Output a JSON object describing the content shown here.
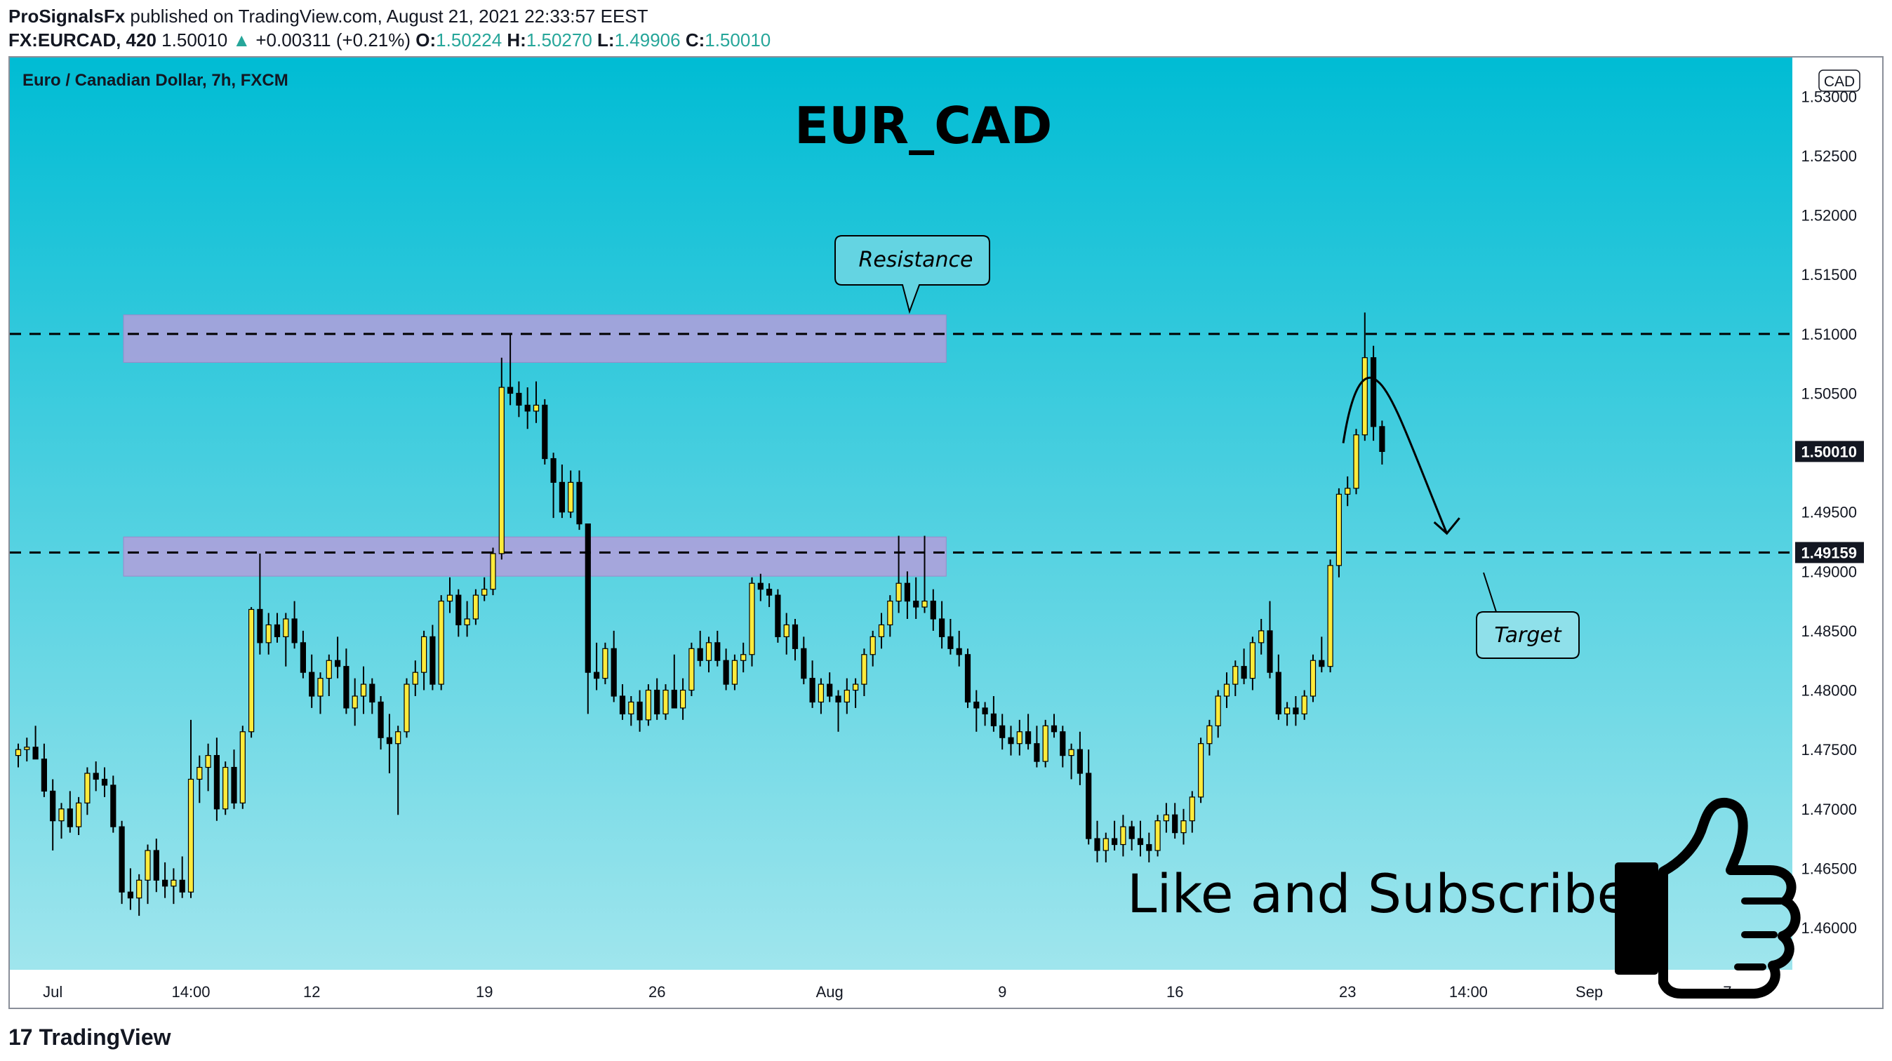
{
  "header": {
    "publisher": "ProSignalsFx",
    "published_text": "published on TradingView.com, August 21, 2021 22:33:57 EEST",
    "symbol": "FX:EURCAD, 420",
    "last": "1.50010",
    "change": "+0.00311 (+0.21%)",
    "o_label": "O:",
    "o": "1.50224",
    "h_label": "H:",
    "h": "1.50270",
    "l_label": "L:",
    "l": "1.49906",
    "c_label": "C:",
    "c": "1.50010"
  },
  "chart": {
    "instrument_label": "Euro / Canadian Dollar, 7h, FXCM",
    "currency_badge": "CAD",
    "main_title": "EUR_CAD",
    "resistance_label": "Resistance",
    "target_label": "Target",
    "cta_text": "Like and Subscribe",
    "current_price_tag": "1.50010",
    "level_price_tag": "1.49159"
  },
  "footer": {
    "brand": "TradingView",
    "logo_glyph": "17"
  },
  "colors": {
    "bg_top": "#00bcd4",
    "bg_bottom": "#a6e7ee",
    "bull": "#ffeb3b",
    "bear": "#000000",
    "zone": "#b39ddb"
  },
  "chart_data": {
    "type": "candlestick",
    "y_ticks": [
      "1.53000",
      "1.52500",
      "1.52000",
      "1.51500",
      "1.51000",
      "1.50500",
      "1.50000",
      "1.49500",
      "1.49000",
      "1.48500",
      "1.48000",
      "1.47500",
      "1.47000",
      "1.46500",
      "1.46000"
    ],
    "y_tick_values": [
      1.53,
      1.525,
      1.52,
      1.515,
      1.51,
      1.505,
      1.5,
      1.495,
      1.49,
      1.485,
      1.48,
      1.475,
      1.47,
      1.465,
      1.46
    ],
    "ylim": [
      1.4575,
      1.5325
    ],
    "x_ticks": [
      {
        "label": "Jul",
        "i": 4
      },
      {
        "label": "14:00",
        "i": 20
      },
      {
        "label": "12",
        "i": 34
      },
      {
        "label": "19",
        "i": 54
      },
      {
        "label": "26",
        "i": 74
      },
      {
        "label": "Aug",
        "i": 94
      },
      {
        "label": "9",
        "i": 114
      },
      {
        "label": "16",
        "i": 134
      },
      {
        "label": "23",
        "i": 154
      },
      {
        "label": "14:00",
        "i": 168
      },
      {
        "label": "Sep",
        "i": 182
      },
      {
        "label": "7",
        "i": 198
      }
    ],
    "resistance_zone": [
      1.5076,
      1.5116
    ],
    "support_zone": [
      1.4896,
      1.4929
    ],
    "resistance_level": 1.51,
    "support_level": 1.49159,
    "current_price": 1.5001,
    "projection": [
      {
        "i": 153.5,
        "y": 1.5008
      },
      {
        "i": 157.5,
        "y": 1.506
      },
      {
        "i": 161.5,
        "y": 1.5003
      },
      {
        "i": 165.5,
        "y": 1.4932
      }
    ],
    "ohlc": [
      [
        1.4745,
        1.4755,
        1.4735,
        1.475
      ],
      [
        1.475,
        1.476,
        1.474,
        1.4752
      ],
      [
        1.4752,
        1.477,
        1.4745,
        1.4742
      ],
      [
        1.4742,
        1.4755,
        1.471,
        1.4715
      ],
      [
        1.4715,
        1.4725,
        1.4665,
        1.469
      ],
      [
        1.469,
        1.4705,
        1.4675,
        1.47
      ],
      [
        1.47,
        1.4715,
        1.468,
        1.4685
      ],
      [
        1.4685,
        1.471,
        1.4678,
        1.4705
      ],
      [
        1.4705,
        1.4735,
        1.4695,
        1.473
      ],
      [
        1.473,
        1.474,
        1.4715,
        1.4725
      ],
      [
        1.4725,
        1.4735,
        1.471,
        1.472
      ],
      [
        1.472,
        1.4728,
        1.468,
        1.4685
      ],
      [
        1.4685,
        1.469,
        1.462,
        1.463
      ],
      [
        1.463,
        1.465,
        1.4615,
        1.4625
      ],
      [
        1.4625,
        1.4645,
        1.461,
        1.464
      ],
      [
        1.464,
        1.467,
        1.462,
        1.4665
      ],
      [
        1.4665,
        1.4675,
        1.463,
        1.464
      ],
      [
        1.464,
        1.4655,
        1.4625,
        1.4635
      ],
      [
        1.4635,
        1.465,
        1.462,
        1.464
      ],
      [
        1.464,
        1.466,
        1.4625,
        1.463
      ],
      [
        1.463,
        1.4775,
        1.4625,
        1.4725
      ],
      [
        1.4725,
        1.4745,
        1.4705,
        1.4735
      ],
      [
        1.4735,
        1.4755,
        1.4715,
        1.4745
      ],
      [
        1.4745,
        1.476,
        1.469,
        1.47
      ],
      [
        1.47,
        1.474,
        1.4695,
        1.4735
      ],
      [
        1.4735,
        1.475,
        1.47,
        1.4705
      ],
      [
        1.4705,
        1.477,
        1.47,
        1.4765
      ],
      [
        1.4765,
        1.487,
        1.476,
        1.4868
      ],
      [
        1.4868,
        1.4915,
        1.483,
        1.484
      ],
      [
        1.484,
        1.4865,
        1.483,
        1.4855
      ],
      [
        1.4855,
        1.4865,
        1.484,
        1.4845
      ],
      [
        1.4845,
        1.4865,
        1.482,
        1.486
      ],
      [
        1.486,
        1.4875,
        1.4835,
        1.484
      ],
      [
        1.484,
        1.485,
        1.481,
        1.4815
      ],
      [
        1.4815,
        1.483,
        1.4785,
        1.4795
      ],
      [
        1.4795,
        1.4815,
        1.478,
        1.481
      ],
      [
        1.481,
        1.483,
        1.4795,
        1.4825
      ],
      [
        1.4825,
        1.4845,
        1.481,
        1.482
      ],
      [
        1.482,
        1.4835,
        1.478,
        1.4785
      ],
      [
        1.4785,
        1.481,
        1.477,
        1.4795
      ],
      [
        1.4795,
        1.482,
        1.478,
        1.4805
      ],
      [
        1.4805,
        1.481,
        1.478,
        1.479
      ],
      [
        1.479,
        1.4795,
        1.475,
        1.476
      ],
      [
        1.476,
        1.478,
        1.473,
        1.4755
      ],
      [
        1.4755,
        1.477,
        1.4695,
        1.4765
      ],
      [
        1.4765,
        1.481,
        1.476,
        1.4805
      ],
      [
        1.4805,
        1.4825,
        1.4795,
        1.4815
      ],
      [
        1.4815,
        1.485,
        1.48,
        1.4845
      ],
      [
        1.4845,
        1.4855,
        1.48,
        1.4805
      ],
      [
        1.4805,
        1.488,
        1.48,
        1.4875
      ],
      [
        1.4875,
        1.4895,
        1.4865,
        1.488
      ],
      [
        1.488,
        1.4885,
        1.4845,
        1.4855
      ],
      [
        1.4855,
        1.4875,
        1.4845,
        1.486
      ],
      [
        1.486,
        1.4885,
        1.4855,
        1.488
      ],
      [
        1.488,
        1.4895,
        1.4875,
        1.4885
      ],
      [
        1.4885,
        1.492,
        1.488,
        1.4915
      ],
      [
        1.4915,
        1.508,
        1.491,
        1.5055
      ],
      [
        1.5055,
        1.51,
        1.504,
        1.505
      ],
      [
        1.505,
        1.506,
        1.503,
        1.504
      ],
      [
        1.504,
        1.5055,
        1.502,
        1.5035
      ],
      [
        1.5035,
        1.506,
        1.5025,
        1.504
      ],
      [
        1.504,
        1.5045,
        1.499,
        1.4995
      ],
      [
        1.4995,
        1.5,
        1.4945,
        1.4975
      ],
      [
        1.4975,
        1.499,
        1.4945,
        1.495
      ],
      [
        1.495,
        1.4985,
        1.4945,
        1.4975
      ],
      [
        1.4975,
        1.4985,
        1.4935,
        1.494
      ],
      [
        1.494,
        1.494,
        1.478,
        1.4815
      ],
      [
        1.4815,
        1.484,
        1.48,
        1.481
      ],
      [
        1.481,
        1.484,
        1.4805,
        1.4835
      ],
      [
        1.4835,
        1.485,
        1.479,
        1.4795
      ],
      [
        1.4795,
        1.4805,
        1.4775,
        1.478
      ],
      [
        1.478,
        1.4795,
        1.477,
        1.479
      ],
      [
        1.479,
        1.48,
        1.4765,
        1.4775
      ],
      [
        1.4775,
        1.4805,
        1.477,
        1.48
      ],
      [
        1.48,
        1.481,
        1.4775,
        1.478
      ],
      [
        1.478,
        1.4805,
        1.4775,
        1.48
      ],
      [
        1.48,
        1.483,
        1.4785,
        1.4785
      ],
      [
        1.4785,
        1.481,
        1.4775,
        1.48
      ],
      [
        1.48,
        1.484,
        1.4795,
        1.4835
      ],
      [
        1.4835,
        1.485,
        1.482,
        1.4825
      ],
      [
        1.4825,
        1.4845,
        1.4815,
        1.484
      ],
      [
        1.484,
        1.485,
        1.482,
        1.4825
      ],
      [
        1.4825,
        1.4835,
        1.48,
        1.4805
      ],
      [
        1.4805,
        1.483,
        1.48,
        1.4825
      ],
      [
        1.4825,
        1.484,
        1.4815,
        1.483
      ],
      [
        1.483,
        1.4895,
        1.482,
        1.489
      ],
      [
        1.489,
        1.4898,
        1.4875,
        1.4885
      ],
      [
        1.4885,
        1.489,
        1.487,
        1.488
      ],
      [
        1.488,
        1.4885,
        1.484,
        1.4845
      ],
      [
        1.4845,
        1.4865,
        1.483,
        1.4855
      ],
      [
        1.4855,
        1.486,
        1.4825,
        1.4835
      ],
      [
        1.4835,
        1.4845,
        1.4805,
        1.481
      ],
      [
        1.481,
        1.4825,
        1.4785,
        1.479
      ],
      [
        1.479,
        1.481,
        1.478,
        1.4805
      ],
      [
        1.4805,
        1.4815,
        1.479,
        1.4795
      ],
      [
        1.4795,
        1.48,
        1.4765,
        1.479
      ],
      [
        1.479,
        1.481,
        1.478,
        1.48
      ],
      [
        1.48,
        1.481,
        1.4785,
        1.4805
      ],
      [
        1.4805,
        1.4835,
        1.4795,
        1.483
      ],
      [
        1.483,
        1.485,
        1.482,
        1.4845
      ],
      [
        1.4845,
        1.4865,
        1.4835,
        1.4855
      ],
      [
        1.4855,
        1.488,
        1.4845,
        1.4875
      ],
      [
        1.4875,
        1.493,
        1.4865,
        1.489
      ],
      [
        1.489,
        1.49,
        1.486,
        1.4875
      ],
      [
        1.4875,
        1.4895,
        1.486,
        1.487
      ],
      [
        1.487,
        1.493,
        1.4865,
        1.4875
      ],
      [
        1.4875,
        1.4885,
        1.485,
        1.486
      ],
      [
        1.486,
        1.4875,
        1.4835,
        1.4845
      ],
      [
        1.4845,
        1.486,
        1.483,
        1.4835
      ],
      [
        1.4835,
        1.485,
        1.482,
        1.483
      ],
      [
        1.483,
        1.4835,
        1.4785,
        1.479
      ],
      [
        1.479,
        1.48,
        1.4765,
        1.4785
      ],
      [
        1.4785,
        1.479,
        1.477,
        1.478
      ],
      [
        1.478,
        1.4795,
        1.4765,
        1.477
      ],
      [
        1.477,
        1.478,
        1.475,
        1.476
      ],
      [
        1.476,
        1.477,
        1.4745,
        1.4755
      ],
      [
        1.4755,
        1.4775,
        1.4745,
        1.4765
      ],
      [
        1.4765,
        1.478,
        1.475,
        1.4755
      ],
      [
        1.4755,
        1.477,
        1.4735,
        1.474
      ],
      [
        1.474,
        1.4775,
        1.4735,
        1.477
      ],
      [
        1.477,
        1.478,
        1.476,
        1.4765
      ],
      [
        1.4765,
        1.477,
        1.4735,
        1.4745
      ],
      [
        1.4745,
        1.4755,
        1.4725,
        1.475
      ],
      [
        1.475,
        1.4765,
        1.472,
        1.473
      ],
      [
        1.473,
        1.475,
        1.467,
        1.4675
      ],
      [
        1.4675,
        1.469,
        1.4655,
        1.4665
      ],
      [
        1.4665,
        1.468,
        1.4655,
        1.4675
      ],
      [
        1.4675,
        1.469,
        1.4665,
        1.467
      ],
      [
        1.467,
        1.4695,
        1.466,
        1.4685
      ],
      [
        1.4685,
        1.469,
        1.4665,
        1.4675
      ],
      [
        1.4675,
        1.469,
        1.466,
        1.467
      ],
      [
        1.467,
        1.468,
        1.4655,
        1.4665
      ],
      [
        1.4665,
        1.4695,
        1.466,
        1.469
      ],
      [
        1.469,
        1.4705,
        1.468,
        1.4695
      ],
      [
        1.4695,
        1.4705,
        1.4675,
        1.468
      ],
      [
        1.468,
        1.47,
        1.467,
        1.469
      ],
      [
        1.469,
        1.4715,
        1.468,
        1.471
      ],
      [
        1.471,
        1.476,
        1.4705,
        1.4755
      ],
      [
        1.4755,
        1.4775,
        1.4745,
        1.477
      ],
      [
        1.477,
        1.48,
        1.476,
        1.4795
      ],
      [
        1.4795,
        1.4815,
        1.4785,
        1.4805
      ],
      [
        1.4805,
        1.4825,
        1.4795,
        1.482
      ],
      [
        1.482,
        1.4835,
        1.4805,
        1.481
      ],
      [
        1.481,
        1.4845,
        1.48,
        1.484
      ],
      [
        1.484,
        1.486,
        1.483,
        1.485
      ],
      [
        1.485,
        1.4875,
        1.481,
        1.4815
      ],
      [
        1.4815,
        1.483,
        1.4775,
        1.478
      ],
      [
        1.478,
        1.479,
        1.477,
        1.4785
      ],
      [
        1.4785,
        1.4795,
        1.477,
        1.478
      ],
      [
        1.478,
        1.48,
        1.4775,
        1.4795
      ],
      [
        1.4795,
        1.483,
        1.479,
        1.4825
      ],
      [
        1.4825,
        1.4845,
        1.4815,
        1.482
      ],
      [
        1.482,
        1.491,
        1.4815,
        1.4905
      ],
      [
        1.4905,
        1.497,
        1.4895,
        1.4965
      ],
      [
        1.4965,
        1.498,
        1.4955,
        1.497
      ],
      [
        1.497,
        1.502,
        1.4965,
        1.5015
      ],
      [
        1.5015,
        1.5118,
        1.501,
        1.508
      ],
      [
        1.508,
        1.509,
        1.501,
        1.5022
      ],
      [
        1.5022,
        1.5027,
        1.499,
        1.5001
      ]
    ]
  }
}
